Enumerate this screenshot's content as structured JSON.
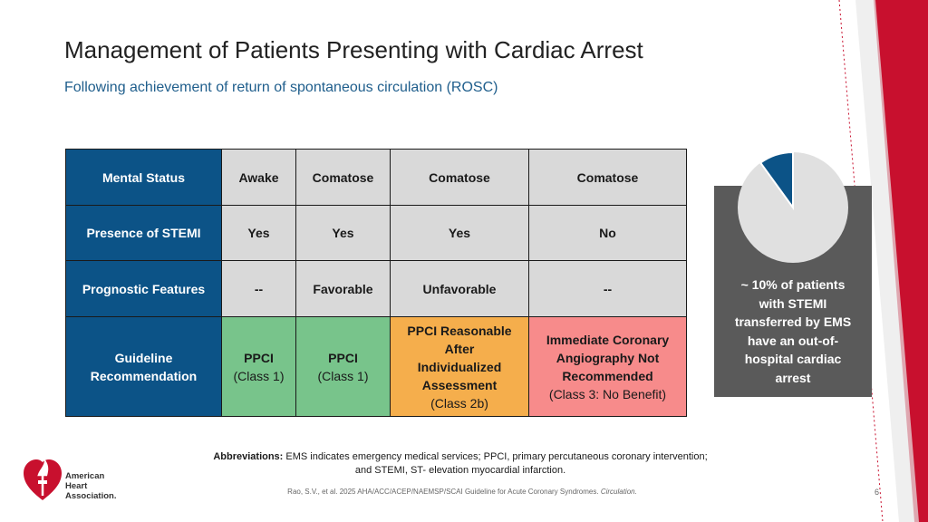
{
  "header": {
    "title": "Management of Patients Presenting with Cardiac Arrest",
    "subtitle": "Following achievement of return of spontaneous circulation (ROSC)"
  },
  "table": {
    "rows": [
      {
        "label": "Mental Status",
        "cells": [
          "Awake",
          "Comatose",
          "Comatose",
          "Comatose"
        ]
      },
      {
        "label": "Presence of STEMI",
        "cells": [
          "Yes",
          "Yes",
          "Yes",
          "No"
        ]
      },
      {
        "label": "Prognostic Features",
        "cells": [
          "--",
          "Favorable",
          "Unfavorable",
          "--"
        ]
      }
    ],
    "recommendation": {
      "label_line1": "Guideline",
      "label_line2": "Recommendation",
      "cells": [
        {
          "main": "PPCI",
          "class": "(Class 1)",
          "color": "#78c48b"
        },
        {
          "main": "PPCI",
          "class": "(Class 1)",
          "color": "#78c48b"
        },
        {
          "main_lines": [
            "PPCI Reasonable",
            "After",
            "Individualized",
            "Assessment"
          ],
          "class": "(Class 2b)",
          "color": "#f5ae4c"
        },
        {
          "main_lines": [
            "Immediate Coronary",
            "Angiography Not",
            "Recommended"
          ],
          "class": "(Class 3: No Benefit)",
          "color": "#f78b8b"
        }
      ]
    },
    "header_color": "#0c5387",
    "cell_color": "#d9d9d9"
  },
  "sidebar": {
    "pie_percent": 10,
    "pie_fill": "#0c5387",
    "pie_bg": "#e0e0e0",
    "box_color": "#5a5a5a",
    "lines": [
      "~ 10% of patients",
      "with STEMI",
      "transferred by EMS",
      "have an out-of-",
      "hospital cardiac",
      "arrest"
    ]
  },
  "footer": {
    "abbr_label": "Abbreviations:",
    "abbr_text_1": " EMS indicates emergency medical services; PPCI, primary percutaneous coronary intervention;",
    "abbr_text_2": "and STEMI, ST- elevation myocardial infarction.",
    "citation_main": "Rao, S.V., et al. 2025 AHA/ACC/ACEP/NAEMSP/SCAI Guideline for Acute Coronary Syndromes. ",
    "citation_journal": "Circulation.",
    "page_number": "6"
  },
  "logo": {
    "line1": "American",
    "line2": "Heart",
    "line3": "Association."
  },
  "accent_red": "#c8102e"
}
